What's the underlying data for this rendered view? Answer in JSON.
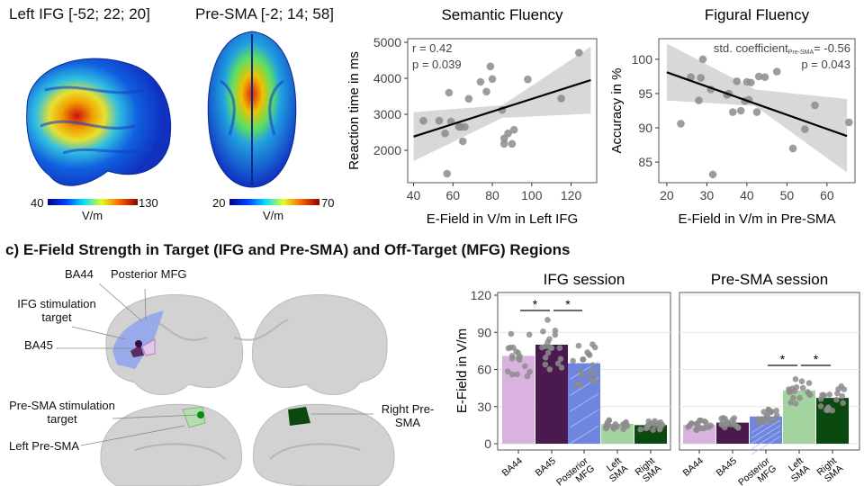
{
  "panel_a": {
    "ifg_title": "Left IFG [-52; 22; 20]",
    "presma_title": "Pre-SMA [-2; 14; 58]",
    "ifg_colorbar": {
      "min": "40",
      "max": "130",
      "unit": "V/m"
    },
    "presma_colorbar": {
      "min": "20",
      "max": "70",
      "unit": "V/m"
    }
  },
  "panel_c": {
    "title": "c) E-Field Strength in Target (IFG and Pre-SMA) and Off-Target (MFG) Regions",
    "labels": {
      "ba44": "BA44",
      "posterior_mfg": "Posterior MFG",
      "ifg_target": "IFG stimulation target",
      "ba45": "BA45",
      "presma_target": "Pre-SMA stimulation target",
      "left_presma": "Left Pre-SMA",
      "right_presma": "Right Pre-SMA"
    }
  },
  "colors": {
    "BA44": "#d9b2e0",
    "BA45": "#4a1a4f",
    "Posterior MFG": "#6f86e0",
    "Left SMA": "#a3d4a0",
    "Right SMA": "#0a4a10",
    "points": "#8c8c8c",
    "ci_band": "#d4d4d4"
  },
  "chart_data": [
    {
      "type": "scatter",
      "title": "Semantic Fluency",
      "xlabel": "E-Field in V/m in Left IFG",
      "ylabel": "Reaction time in ms",
      "xlim": [
        37,
        133
      ],
      "ylim": [
        1100,
        5100
      ],
      "xticks": [
        40,
        60,
        80,
        100,
        120
      ],
      "yticks": [
        2000,
        3000,
        4000,
        5000
      ],
      "annotations": [
        "r = 0.42",
        "p = 0.039"
      ],
      "points": [
        [
          45,
          2820
        ],
        [
          53,
          2820
        ],
        [
          56,
          2470
        ],
        [
          57,
          1350
        ],
        [
          58,
          3600
        ],
        [
          59,
          2800
        ],
        [
          63,
          2650
        ],
        [
          64,
          2650
        ],
        [
          66,
          2650
        ],
        [
          65,
          2250
        ],
        [
          68,
          3430
        ],
        [
          74,
          3900
        ],
        [
          77,
          3630
        ],
        [
          79,
          4330
        ],
        [
          80,
          3980
        ],
        [
          85,
          3120
        ],
        [
          86,
          2330
        ],
        [
          86,
          2180
        ],
        [
          88,
          2470
        ],
        [
          90,
          2180
        ],
        [
          91,
          2570
        ],
        [
          98,
          3970
        ],
        [
          115,
          3440
        ],
        [
          124,
          4710
        ]
      ],
      "fit_line": [
        [
          40,
          2380
        ],
        [
          130,
          3950
        ]
      ],
      "ci_band": {
        "x": [
          40,
          85,
          130
        ],
        "lower": [
          1700,
          2900,
          3020
        ],
        "upper": [
          3060,
          3250,
          4880
        ]
      }
    },
    {
      "type": "scatter",
      "title": "Figural Fluency",
      "xlabel": "E-Field in V/m in Pre-SMA",
      "ylabel": "Accuracy in %",
      "xlim": [
        18,
        67
      ],
      "ylim": [
        82,
        103
      ],
      "xticks": [
        20,
        30,
        40,
        50,
        60
      ],
      "yticks": [
        85,
        90,
        95,
        100
      ],
      "annotations": [
        "std. coefficient",
        "Pre-SMA",
        "= -0.56",
        "p = 0.043"
      ],
      "points": [
        [
          23.5,
          90.6
        ],
        [
          26,
          97.4
        ],
        [
          28,
          94
        ],
        [
          28.5,
          97.3
        ],
        [
          29,
          100
        ],
        [
          31,
          95.6
        ],
        [
          31.5,
          83.2
        ],
        [
          35,
          94.8
        ],
        [
          35.5,
          95
        ],
        [
          36.5,
          92.3
        ],
        [
          37.5,
          96.8
        ],
        [
          38.5,
          92.5
        ],
        [
          39.5,
          93.9
        ],
        [
          40,
          96.7
        ],
        [
          40.5,
          94.1
        ],
        [
          41,
          96.6
        ],
        [
          42.5,
          92.3
        ],
        [
          43,
          97.5
        ],
        [
          44.5,
          97.4
        ],
        [
          47.5,
          98.2
        ],
        [
          51.5,
          87
        ],
        [
          54.5,
          89.8
        ],
        [
          57,
          93.3
        ],
        [
          65.5,
          90.8
        ]
      ],
      "fit_line": [
        [
          20,
          98.1
        ],
        [
          65,
          88.8
        ]
      ],
      "ci_band": {
        "x": [
          20,
          42,
          65
        ],
        "lower": [
          94,
          93.2,
          83.5
        ],
        "upper": [
          102.3,
          95.6,
          94.2
        ]
      }
    },
    {
      "type": "bar",
      "ylabel": "E-Field in V/m",
      "ylim": [
        0,
        120
      ],
      "yticks": [
        0,
        30,
        60,
        90,
        120
      ],
      "grid": true,
      "categories": [
        "BA44",
        "BA45",
        "Posterior MFG",
        "Left SMA",
        "Right SMA"
      ],
      "panels": [
        {
          "title": "IFG session",
          "values": [
            71,
            80,
            65,
            16,
            15
          ],
          "significance": [
            [
              "BA44",
              "BA45",
              "*"
            ],
            [
              "BA45",
              "Posterior MFG",
              "*"
            ]
          ]
        },
        {
          "title": "Pre-SMA session",
          "values": [
            15,
            17,
            22,
            43,
            37
          ],
          "significance": [
            [
              "Posterior MFG",
              "Left SMA",
              "*"
            ],
            [
              "Left SMA",
              "Right SMA",
              "*"
            ]
          ]
        }
      ]
    }
  ]
}
